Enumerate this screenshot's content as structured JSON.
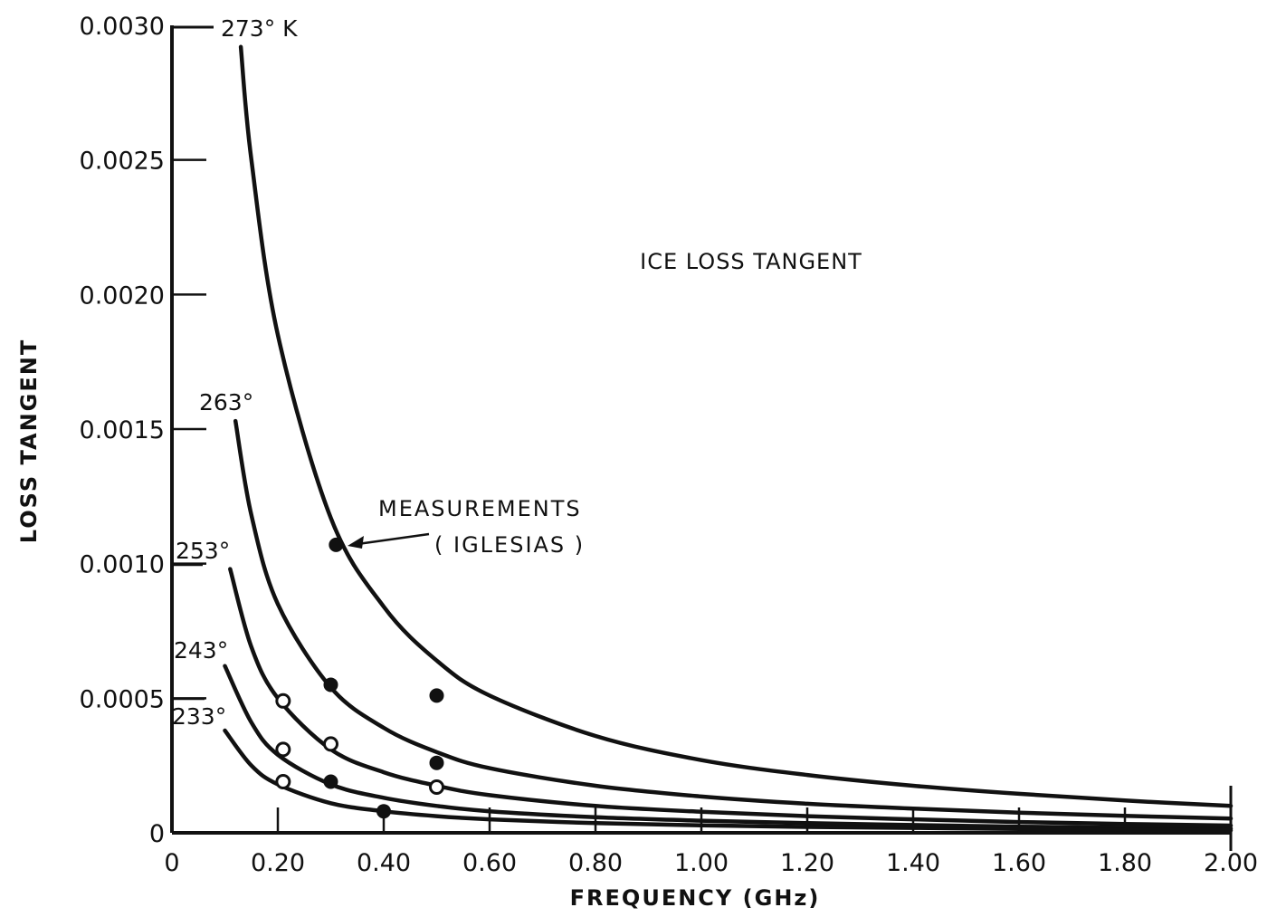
{
  "chart_data": {
    "type": "line",
    "title": "ICE LOSS TANGENT",
    "xlabel": "FREQUENCY  (GHz)",
    "ylabel": "LOSS TANGENT",
    "xlim": [
      0,
      2.0
    ],
    "ylim": [
      0,
      0.003
    ],
    "x_tick_labels": [
      "0",
      "0.20",
      "0.40",
      "0.60",
      "0.80",
      "1.00",
      "1.20",
      "1.40",
      "1.60",
      "1.80",
      "2.00"
    ],
    "y_tick_labels": [
      "0",
      "0.0005",
      "0.0010",
      "0.0015",
      "0.0020",
      "0.0025",
      "0.0030"
    ],
    "grid": false,
    "series": [
      {
        "name": "273° K",
        "x": [
          0.13,
          0.15,
          0.2,
          0.3,
          0.4,
          0.5,
          0.6,
          0.8,
          1.0,
          1.2,
          1.4,
          1.6,
          1.8,
          2.0
        ],
        "y": [
          0.00292,
          0.0025,
          0.00185,
          0.00117,
          0.00084,
          0.00064,
          0.00051,
          0.00036,
          0.00027,
          0.000215,
          0.000175,
          0.000145,
          0.00012,
          0.0001
        ]
      },
      {
        "name": "263°",
        "x": [
          0.12,
          0.15,
          0.2,
          0.3,
          0.4,
          0.5,
          0.6,
          0.8,
          1.0,
          1.2,
          1.4,
          1.6,
          1.8,
          2.0
        ],
        "y": [
          0.00153,
          0.00118,
          0.00085,
          0.00054,
          0.00039,
          0.0003,
          0.00024,
          0.000175,
          0.000135,
          0.000108,
          9e-05,
          7.5e-05,
          6.3e-05,
          5.3e-05
        ]
      },
      {
        "name": "253°",
        "x": [
          0.11,
          0.15,
          0.2,
          0.3,
          0.4,
          0.5,
          0.6,
          0.8,
          1.0,
          1.2,
          1.4,
          1.6,
          1.8,
          2.0
        ],
        "y": [
          0.00098,
          0.00069,
          0.0005,
          0.00031,
          0.000225,
          0.000175,
          0.00014,
          0.0001,
          7.8e-05,
          6.2e-05,
          5e-05,
          4e-05,
          3.3e-05,
          2.7e-05
        ]
      },
      {
        "name": "243°",
        "x": [
          0.1,
          0.15,
          0.2,
          0.3,
          0.4,
          0.5,
          0.6,
          0.8,
          1.0,
          1.2,
          1.4,
          1.6,
          1.8,
          2.0
        ],
        "y": [
          0.00062,
          0.00041,
          0.00029,
          0.00018,
          0.00013,
          0.0001,
          8e-05,
          5.8e-05,
          4.5e-05,
          3.6e-05,
          2.9e-05,
          2.3e-05,
          1.9e-05,
          1.6e-05
        ]
      },
      {
        "name": "233°",
        "x": [
          0.1,
          0.15,
          0.2,
          0.3,
          0.4,
          0.5,
          0.6,
          0.8,
          1.0,
          1.2,
          1.4,
          1.6,
          1.8,
          2.0
        ],
        "y": [
          0.00038,
          0.00025,
          0.00018,
          0.00011,
          8e-05,
          6.2e-05,
          5e-05,
          3.6e-05,
          2.8e-05,
          2.2e-05,
          1.8e-05,
          1.4e-05,
          1.1e-05,
          9e-06
        ]
      }
    ],
    "measurements": {
      "label": "MEASUREMENTS",
      "source": "( IGLESIAS )",
      "points": [
        {
          "x": 0.31,
          "y": 0.00107,
          "marker": "filled"
        },
        {
          "x": 0.3,
          "y": 0.00055,
          "marker": "filled"
        },
        {
          "x": 0.5,
          "y": 0.00051,
          "marker": "filled"
        },
        {
          "x": 0.5,
          "y": 0.00026,
          "marker": "filled"
        },
        {
          "x": 0.21,
          "y": 0.00049,
          "marker": "open"
        },
        {
          "x": 0.21,
          "y": 0.00031,
          "marker": "open"
        },
        {
          "x": 0.3,
          "y": 0.00033,
          "marker": "open"
        },
        {
          "x": 0.21,
          "y": 0.00019,
          "marker": "open"
        },
        {
          "x": 0.3,
          "y": 0.00019,
          "marker": "filled"
        },
        {
          "x": 0.5,
          "y": 0.00017,
          "marker": "open"
        },
        {
          "x": 0.4,
          "y": 8e-05,
          "marker": "filled"
        }
      ]
    }
  }
}
